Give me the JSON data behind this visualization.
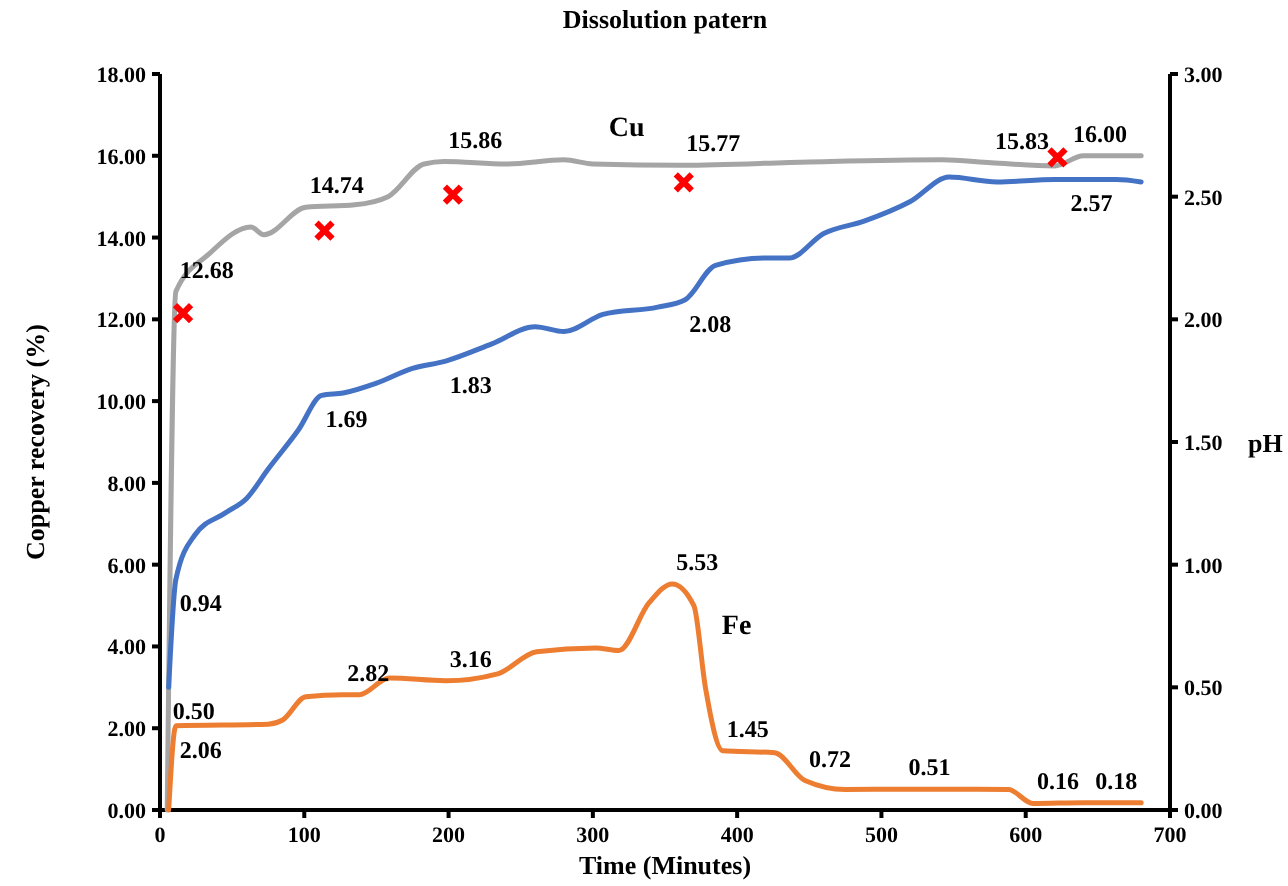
{
  "chart_data": {
    "type": "line",
    "title": "Dissolution patern",
    "xlabel": "Time (Minutes)",
    "ylabel": "Copper recovery (%)",
    "y2label": "pH",
    "xlim": [
      0,
      700
    ],
    "xticks": [
      0,
      100,
      200,
      300,
      400,
      500,
      600,
      700
    ],
    "ylim": [
      0,
      18
    ],
    "yticks": [
      {
        "value": 0,
        "label": "0.00"
      },
      {
        "value": 2,
        "label": "2.00"
      },
      {
        "value": 4,
        "label": "4.00"
      },
      {
        "value": 6,
        "label": "6.00"
      },
      {
        "value": 8,
        "label": "8.00"
      },
      {
        "value": 10,
        "label": "10.00"
      },
      {
        "value": 12,
        "label": "12.00"
      },
      {
        "value": 14,
        "label": "14.00"
      },
      {
        "value": 16,
        "label": "16.00"
      },
      {
        "value": 18,
        "label": "18.00"
      }
    ],
    "y2lim": [
      0,
      3
    ],
    "y2ticks": [
      {
        "value": 0,
        "label": "0.00"
      },
      {
        "value": 0.5,
        "label": "0.50"
      },
      {
        "value": 1,
        "label": "1.00"
      },
      {
        "value": 1.5,
        "label": "1.50"
      },
      {
        "value": 2,
        "label": "2.00"
      },
      {
        "value": 2.5,
        "label": "2.50"
      },
      {
        "value": 3,
        "label": "3.00"
      }
    ],
    "grid": false,
    "legend": false,
    "marker": "none",
    "line_style": "solid",
    "series": [
      {
        "name": "Cu",
        "color": "#a5a5a5",
        "x": [
          5,
          11,
          34,
          63,
          72,
          101,
          135,
          158,
          183,
          197,
          240,
          280,
          300,
          362,
          450,
          542,
          576,
          620,
          640,
          673,
          680
        ],
        "values": [
          0,
          12.68,
          13.6,
          14.26,
          14.07,
          14.74,
          14.8,
          15.0,
          15.8,
          15.86,
          15.8,
          15.9,
          15.8,
          15.77,
          15.85,
          15.9,
          15.83,
          15.75,
          16.0,
          16.0,
          16.0
        ],
        "value_labels": [
          null,
          "12.68",
          null,
          null,
          null,
          "14.74",
          null,
          null,
          null,
          "15.86",
          null,
          null,
          null,
          "15.77",
          null,
          null,
          "15.83",
          null,
          null,
          "16.00",
          null
        ]
      },
      {
        "color": "#4472c4",
        "axis": "y2",
        "x": [
          6,
          11,
          24,
          45,
          60,
          75,
          96,
          112,
          127,
          150,
          175,
          198,
          230,
          260,
          280,
          307,
          345,
          364,
          385,
          420,
          436,
          460,
          488,
          520,
          547,
          580,
          620,
          663,
          680
        ],
        "values": [
          0.5,
          0.94,
          1.12,
          1.21,
          1.27,
          1.39,
          1.55,
          1.69,
          1.7,
          1.74,
          1.8,
          1.83,
          1.9,
          1.97,
          1.95,
          2.02,
          2.05,
          2.08,
          2.22,
          2.25,
          2.25,
          2.35,
          2.4,
          2.48,
          2.58,
          2.56,
          2.57,
          2.57,
          2.56
        ],
        "value_labels": [
          "0.50",
          "0.94",
          null,
          null,
          null,
          null,
          null,
          "1.69",
          null,
          null,
          null,
          "1.83",
          null,
          null,
          null,
          null,
          null,
          "2.08",
          null,
          null,
          null,
          null,
          null,
          null,
          null,
          null,
          null,
          "2.57",
          null
        ]
      },
      {
        "name": "Fe",
        "color": "#ed7d31",
        "x": [
          6,
          11,
          75,
          85,
          101,
          127,
          138,
          159,
          198,
          234,
          261,
          302,
          318,
          339,
          355,
          370,
          378,
          390,
          426,
          447,
          475,
          516,
          588,
          605,
          640,
          680
        ],
        "values": [
          0,
          2.06,
          2.1,
          2.2,
          2.77,
          2.82,
          2.82,
          3.23,
          3.16,
          3.33,
          3.87,
          3.96,
          3.9,
          5.07,
          5.53,
          5.0,
          3.0,
          1.45,
          1.4,
          0.72,
          0.5,
          0.51,
          0.5,
          0.16,
          0.18,
          0.18
        ],
        "value_labels": [
          null,
          "2.06",
          null,
          null,
          null,
          "2.82",
          null,
          null,
          "3.16",
          null,
          null,
          null,
          null,
          null,
          "5.53",
          null,
          null,
          "1.45",
          null,
          "0.72",
          null,
          "0.51",
          null,
          "0.16",
          null,
          "0.18"
        ]
      },
      {
        "type": "scatter",
        "color": "#ff0000",
        "marker": "cross",
        "x": [
          16,
          114,
          203,
          363,
          622
        ],
        "values": [
          12.15,
          14.17,
          15.05,
          15.35,
          15.96
        ]
      }
    ]
  }
}
